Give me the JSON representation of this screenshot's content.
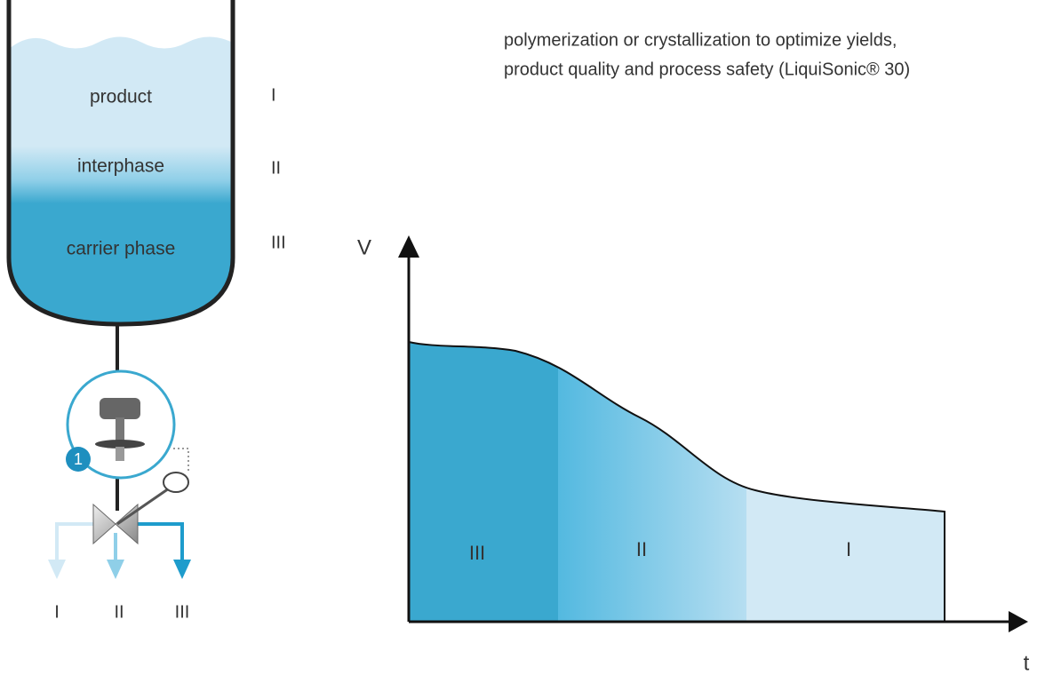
{
  "caption": {
    "lines": [
      "polymerization or crystallization to optimize yields,",
      "product quality and process safety (LiquiSonic® 30)"
    ]
  },
  "tank": {
    "layers": [
      {
        "label": "product",
        "phase": "I"
      },
      {
        "label": "interphase",
        "phase": "II"
      },
      {
        "label": "carrier phase",
        "phase": "III"
      }
    ]
  },
  "sensor": {
    "badge": "1"
  },
  "outlets": [
    "I",
    "II",
    "III"
  ],
  "chart": {
    "y_axis": "V",
    "x_axis": "t",
    "regions": [
      "III",
      "II",
      "I"
    ]
  }
}
